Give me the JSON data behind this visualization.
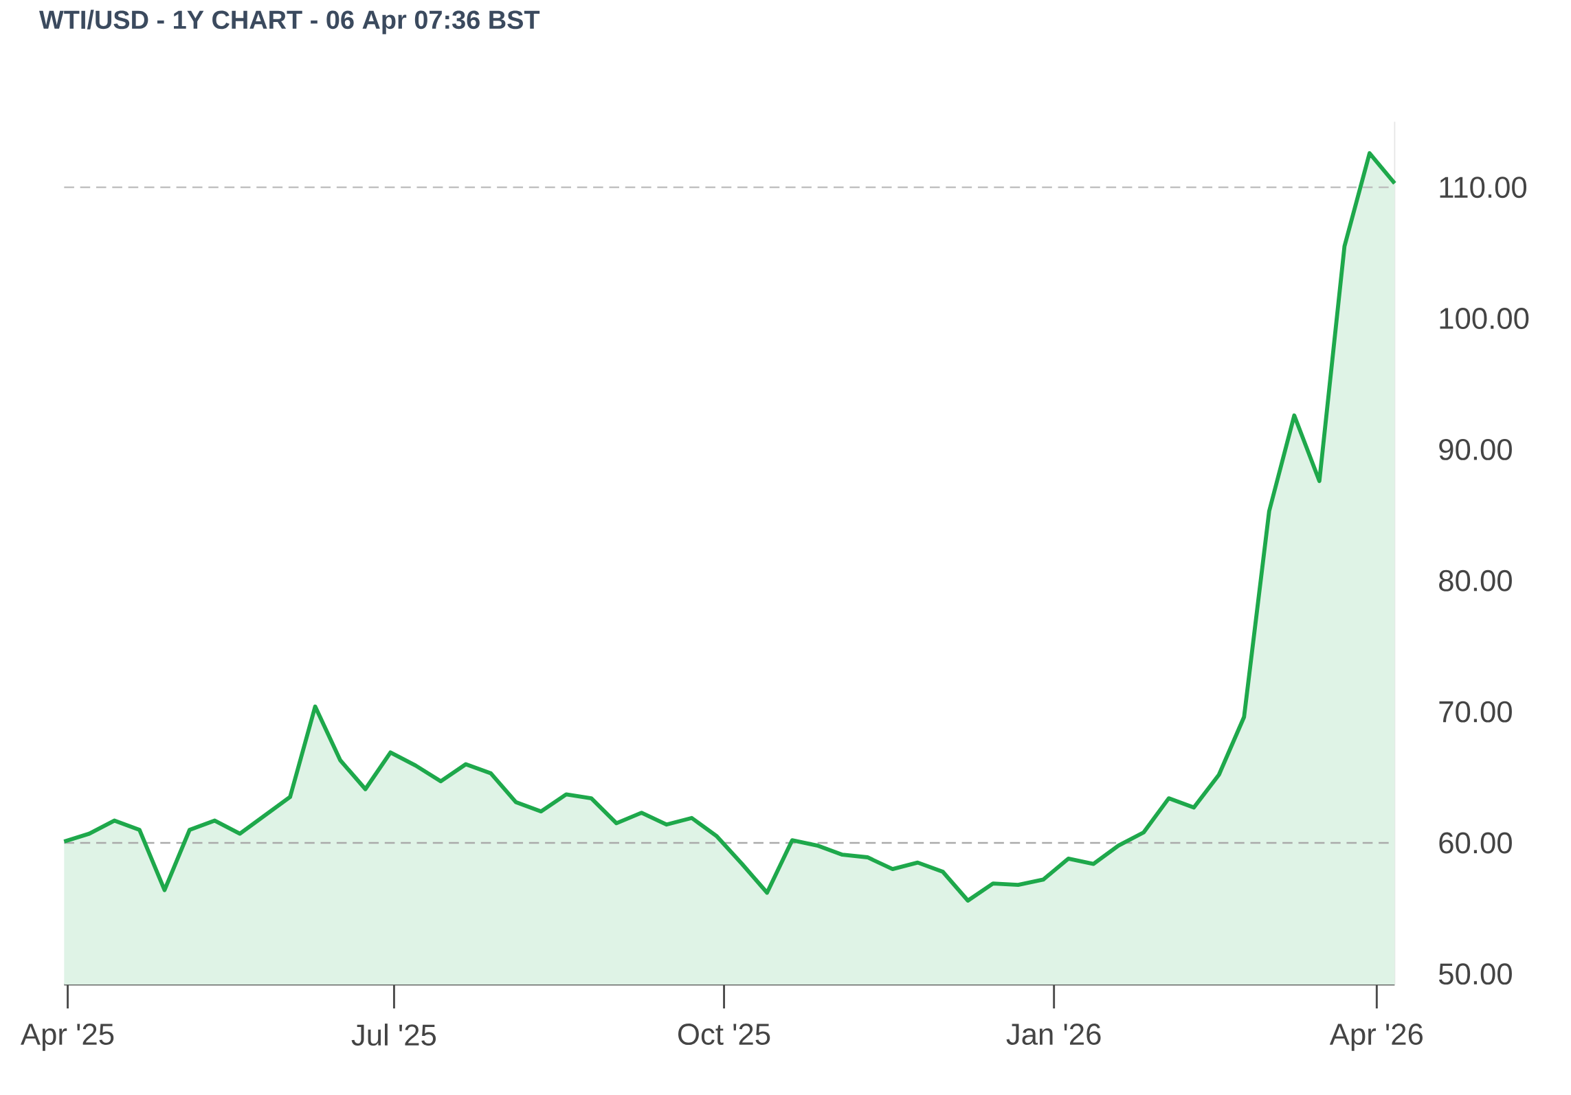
{
  "chart_data": {
    "type": "area",
    "title": "WTI/USD - 1Y CHART - 06 Apr 07:36 BST",
    "x": [
      "2025-03-31",
      "2025-04-07",
      "2025-04-14",
      "2025-04-21",
      "2025-04-28",
      "2025-05-05",
      "2025-05-12",
      "2025-05-19",
      "2025-05-26",
      "2025-06-02",
      "2025-06-09",
      "2025-06-16",
      "2025-06-23",
      "2025-06-30",
      "2025-07-07",
      "2025-07-14",
      "2025-07-21",
      "2025-07-28",
      "2025-08-04",
      "2025-08-11",
      "2025-08-18",
      "2025-08-25",
      "2025-09-01",
      "2025-09-08",
      "2025-09-15",
      "2025-09-22",
      "2025-09-29",
      "2025-10-06",
      "2025-10-13",
      "2025-10-20",
      "2025-10-27",
      "2025-11-03",
      "2025-11-10",
      "2025-11-17",
      "2025-11-24",
      "2025-12-01",
      "2025-12-08",
      "2025-12-15",
      "2025-12-22",
      "2025-12-29",
      "2026-01-05",
      "2026-01-12",
      "2026-01-19",
      "2026-01-26",
      "2026-02-02",
      "2026-02-09",
      "2026-02-16",
      "2026-02-23",
      "2026-03-02",
      "2026-03-09",
      "2026-03-16",
      "2026-03-23",
      "2026-03-30",
      "2026-04-06"
    ],
    "values": [
      60.1,
      60.7,
      61.7,
      61.0,
      56.4,
      61.0,
      61.7,
      60.7,
      62.1,
      63.5,
      70.4,
      66.3,
      64.1,
      66.9,
      65.9,
      64.7,
      66.0,
      65.3,
      63.1,
      62.4,
      63.7,
      63.4,
      61.5,
      62.3,
      61.4,
      61.9,
      60.5,
      58.4,
      56.2,
      60.2,
      59.8,
      59.1,
      58.9,
      58.0,
      58.5,
      57.8,
      55.6,
      56.9,
      56.8,
      57.2,
      58.8,
      58.4,
      59.8,
      60.8,
      63.4,
      62.7,
      65.2,
      69.6,
      85.3,
      92.6,
      87.6,
      105.5,
      112.6,
      110.3
    ],
    "color": "#1ea84b",
    "xlim": [
      "2025-03-31",
      "2026-04-06"
    ],
    "xticks": [
      {
        "value": "2025-04-01",
        "label": "Apr '25"
      },
      {
        "value": "2025-07-01",
        "label": "Jul '25"
      },
      {
        "value": "2025-10-01",
        "label": "Oct '25"
      },
      {
        "value": "2026-01-01",
        "label": "Jan '26"
      },
      {
        "value": "2026-04-01",
        "label": "Apr '26"
      }
    ],
    "ylim": [
      49.2,
      115
    ],
    "yticks": [
      {
        "value": 50,
        "label": "50.00"
      },
      {
        "value": 60,
        "label": "60.00"
      },
      {
        "value": 70,
        "label": "70.00"
      },
      {
        "value": 80,
        "label": "80.00"
      },
      {
        "value": 90,
        "label": "90.00"
      },
      {
        "value": 100,
        "label": "100.00"
      },
      {
        "value": 110,
        "label": "110.00"
      }
    ],
    "ref_lines": [
      {
        "axis": "y",
        "value": 110,
        "color": "#bbbbbb",
        "line_style": "dashed"
      },
      {
        "axis": "y",
        "value": 60,
        "color": "#aaaaaa",
        "line_style": "dashed"
      }
    ]
  }
}
